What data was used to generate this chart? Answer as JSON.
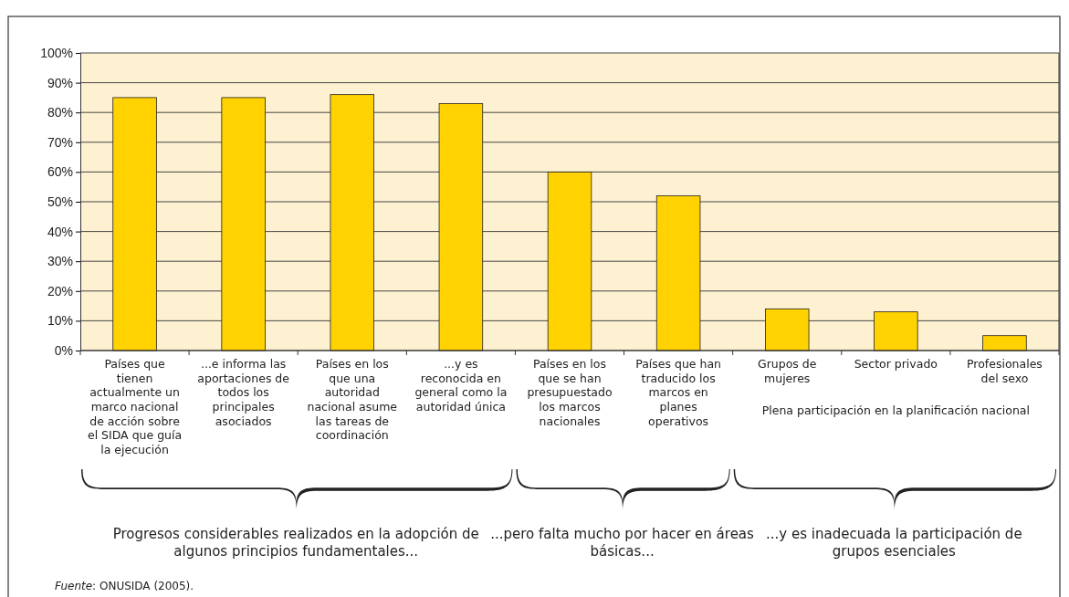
{
  "chart_data": {
    "type": "bar",
    "categories": [
      "Países que tienen actualmente un marco nacional de acción sobre el SIDA que guía la ejecución",
      "...e informa las aportaciones de todos los principales asociados",
      "Países en los que una autoridad nacional asume las tareas de coordinación",
      "...y es reconocida en general como la autoridad única",
      "Países en los que se han presupuestado los marcos nacionales",
      "Países que han traducido los marcos en planes operativos",
      "Grupos de mujeres",
      "Sector privado",
      "Profesionales del sexo"
    ],
    "values": [
      85,
      85,
      86,
      83,
      60,
      52,
      14,
      13,
      5
    ],
    "color": "#ffd200",
    "ylim": [
      0,
      100
    ],
    "yticks": [
      {
        "value": 0,
        "label": "0%"
      },
      {
        "value": 10,
        "label": "10%"
      },
      {
        "value": 20,
        "label": "20%"
      },
      {
        "value": 30,
        "label": "30%"
      },
      {
        "value": 40,
        "label": "40%"
      },
      {
        "value": 50,
        "label": "50%"
      },
      {
        "value": 60,
        "label": "60%"
      },
      {
        "value": 70,
        "label": "70%"
      },
      {
        "value": 80,
        "label": "80%"
      },
      {
        "value": 90,
        "label": "90%"
      },
      {
        "value": 100,
        "label": "100%"
      }
    ],
    "grid": "y",
    "annotations": [
      "Progresos considerables realizados en la adopción de algunos principios fundamentales...",
      "...pero falta mucho por hacer en áreas básicas...",
      "...y es inadecuada la participación de grupos esenciales",
      "Plena participación en la planificación nacional",
      "Fuente: ONUSIDA (2005)."
    ]
  }
}
